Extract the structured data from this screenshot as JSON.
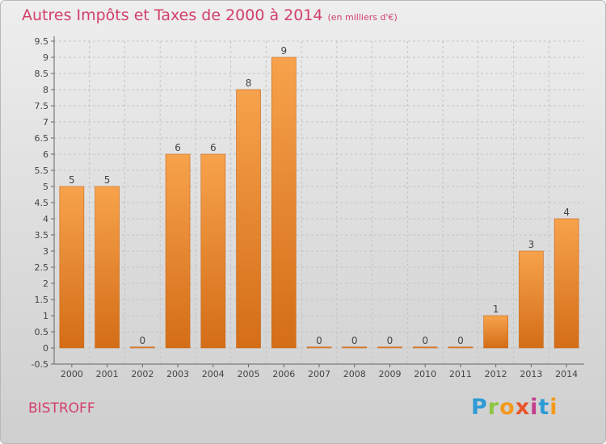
{
  "title": "Autres Impôts et Taxes de 2000 à 2014",
  "subtitle": "(en milliers d'€)",
  "commune": "BISTROFF",
  "logo": {
    "text": "Proxiti",
    "colors": [
      "#2e9bd6",
      "#8cc63f",
      "#f39a1e",
      "#e8542b",
      "#c43c8f",
      "#2e9bd6",
      "#f39a1e"
    ]
  },
  "colors": {
    "bar_top": "#f7a24c",
    "bar_bottom": "#d46d17",
    "title": "#d2406a"
  },
  "chart_data": {
    "type": "bar",
    "categories": [
      "2000",
      "2001",
      "2002",
      "2003",
      "2004",
      "2005",
      "2006",
      "2007",
      "2008",
      "2009",
      "2010",
      "2011",
      "2012",
      "2013",
      "2014"
    ],
    "values": [
      5,
      5,
      0,
      6,
      6,
      8,
      9,
      0,
      0,
      0,
      0,
      0,
      1,
      3,
      4
    ],
    "value_labels": [
      "5",
      "5",
      "0",
      "6",
      "6",
      "8",
      "9",
      "0",
      "0",
      "0",
      "0",
      "0",
      "1",
      "3",
      "4"
    ],
    "yticks": [
      "-0.5",
      "0",
      "0.5",
      "1",
      "1.5",
      "2",
      "2.5",
      "3",
      "3.5",
      "4",
      "4.5",
      "5",
      "5.5",
      "6",
      "6.5",
      "7",
      "7.5",
      "8",
      "8.5",
      "9",
      "9.5"
    ],
    "ylim": [
      -0.5,
      9.5
    ],
    "grid": true,
    "xlabel": "",
    "ylabel": ""
  }
}
